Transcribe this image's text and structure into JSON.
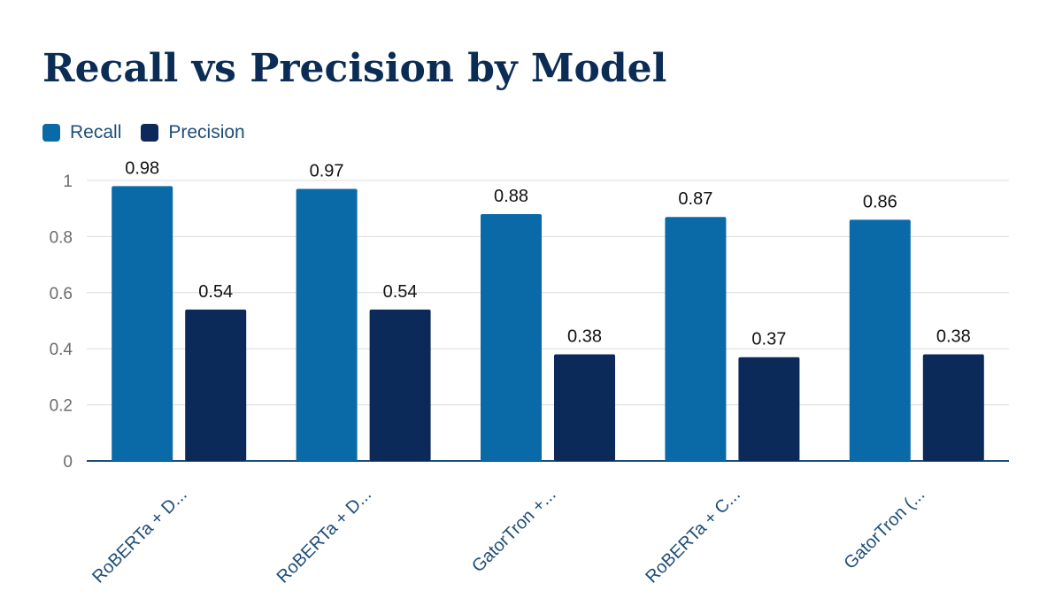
{
  "title": "Recall vs Precision by Model",
  "colors": {
    "recall": "#0a6aa8",
    "precision": "#0b2a5a",
    "grid": "#dcdcdc",
    "axis": "#1f4e79",
    "tick_text": "#6b6b6b",
    "category_text": "#1f4e79",
    "label_text": "#111111"
  },
  "chart_data": {
    "type": "bar",
    "categories": [
      "RoBERTa + D...",
      "RoBERTa + D...",
      "GatorTron +...",
      "RoBERTa + C...",
      "GatorTron (..."
    ],
    "series": [
      {
        "name": "Recall",
        "values": [
          0.98,
          0.97,
          0.88,
          0.87,
          0.86
        ]
      },
      {
        "name": "Precision",
        "values": [
          0.54,
          0.54,
          0.38,
          0.37,
          0.38
        ]
      }
    ],
    "ylim": [
      0,
      1
    ],
    "yticks": [
      0,
      0.2,
      0.4,
      0.6,
      0.8,
      1
    ],
    "ytick_labels": [
      "0",
      "0.2",
      "0.4",
      "0.6",
      "0.8",
      "1"
    ],
    "grid": true,
    "legend": "top-left",
    "data_labels": true
  }
}
